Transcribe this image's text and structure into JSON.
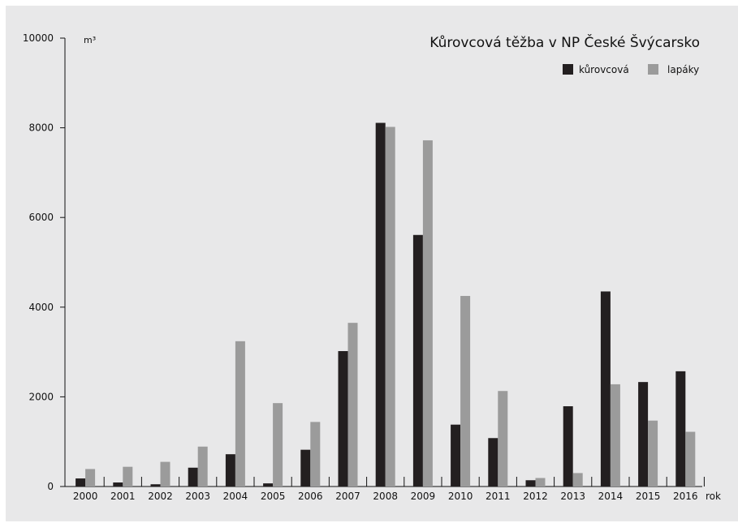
{
  "chart_data": {
    "type": "bar",
    "title": "Kůrovcová těžba v NP České Švýcarsko",
    "ylabel": "m³",
    "xlabel": "rok",
    "ylim": [
      0,
      10000
    ],
    "yticks": [
      "0",
      "2000",
      "4000",
      "6000",
      "8000",
      "10000"
    ],
    "categories": [
      "2000",
      "2001",
      "2002",
      "2003",
      "2004",
      "2005",
      "2006",
      "2007",
      "2008",
      "2009",
      "2010",
      "2011",
      "2012",
      "2013",
      "2014",
      "2015",
      "2016"
    ],
    "series": [
      {
        "name": "kůrovcová",
        "color": "#231f20",
        "values": [
          180,
          90,
          50,
          420,
          720,
          70,
          820,
          3020,
          8110,
          5610,
          1380,
          1080,
          140,
          1790,
          4350,
          2330,
          2570
        ]
      },
      {
        "name": "lapáky",
        "color": "#9b9b9b",
        "values": [
          390,
          440,
          550,
          890,
          3240,
          1860,
          1440,
          3650,
          8020,
          7720,
          4250,
          2130,
          190,
          300,
          2280,
          1470,
          1220
        ]
      }
    ],
    "legend_position": "top-right",
    "grid": false
  }
}
